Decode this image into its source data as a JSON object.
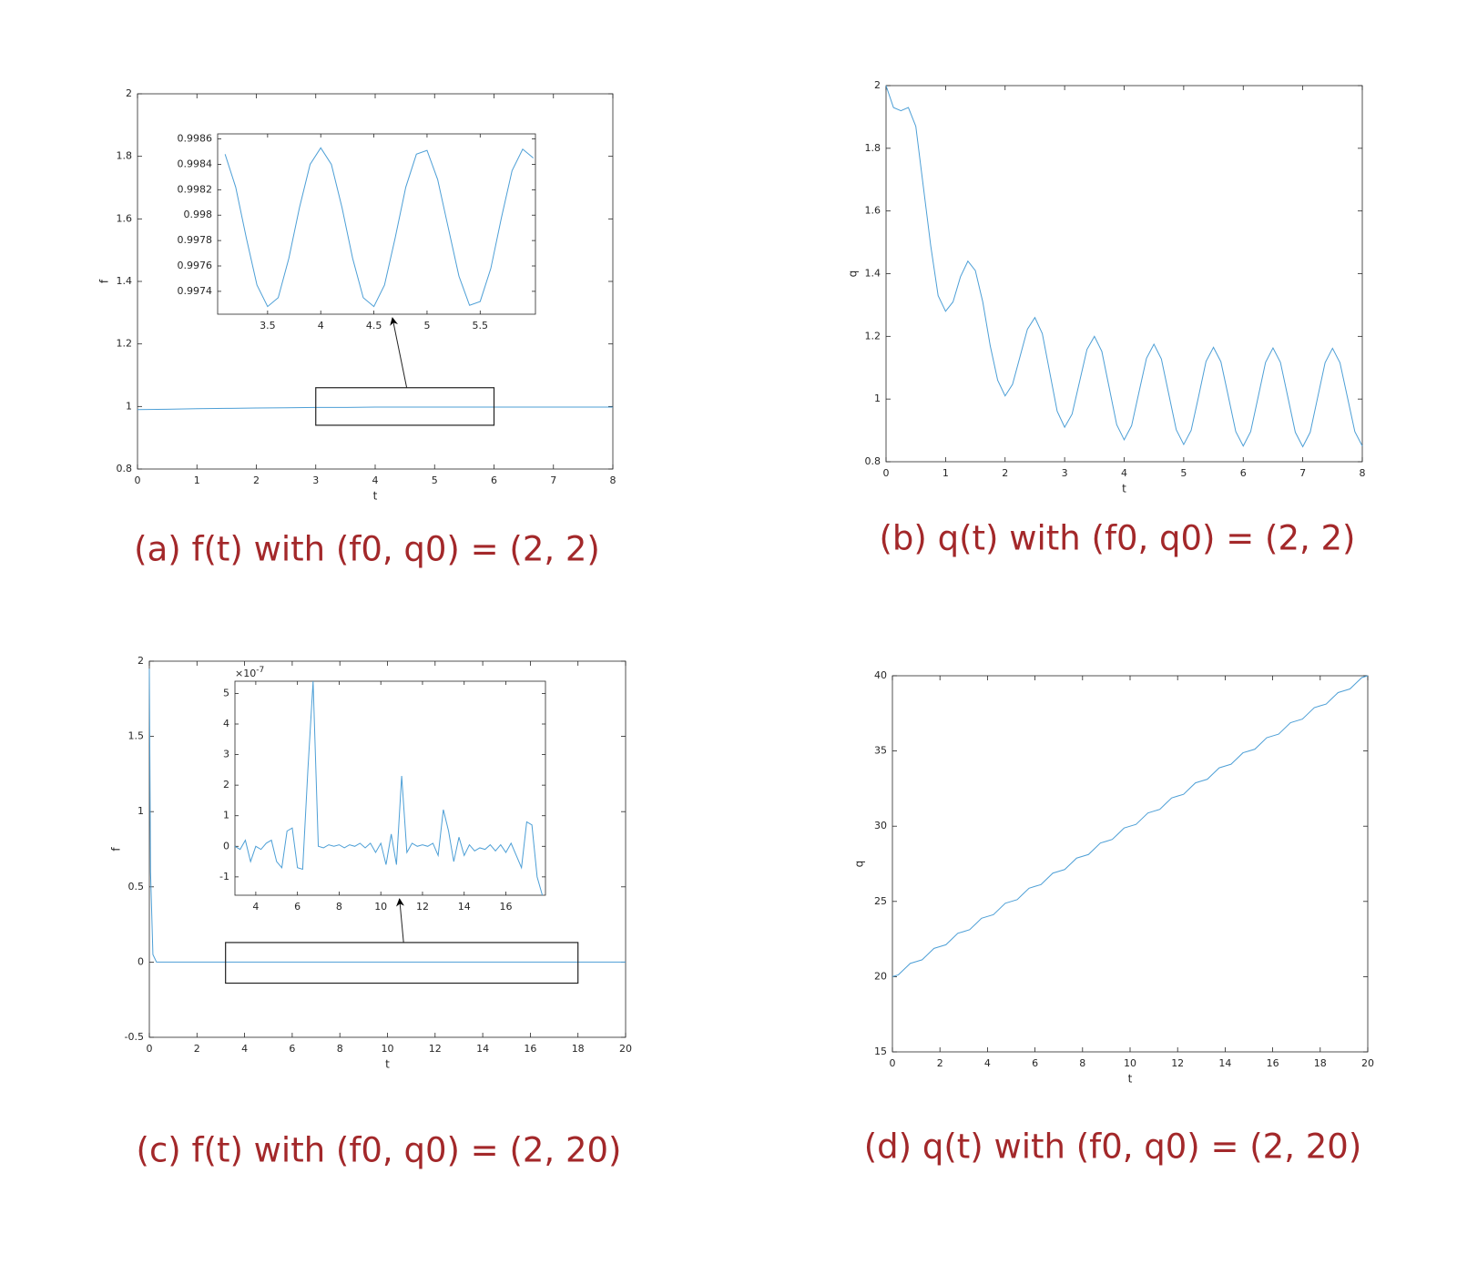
{
  "chart_data": [
    {
      "type": "line",
      "caption": "(a) f(t) with (f0, q0) = (2, 2)",
      "xlabel": "t",
      "ylabel": "f",
      "color": "#4d9fd6",
      "xlim": [
        0,
        8
      ],
      "ylim": [
        0.8,
        2
      ],
      "xticks": [
        0,
        1,
        2,
        3,
        4,
        5,
        6,
        7,
        8
      ],
      "yticks": [
        0.8,
        1,
        1.2,
        1.4,
        1.6,
        1.8,
        2
      ],
      "x": [
        0,
        0.5,
        1,
        1.5,
        2,
        2.5,
        3,
        3.5,
        4,
        4.5,
        5,
        5.5,
        6,
        6.5,
        7,
        7.5,
        8
      ],
      "values": [
        0.99,
        0.991,
        0.993,
        0.994,
        0.995,
        0.996,
        0.997,
        0.997,
        0.998,
        0.998,
        0.998,
        0.998,
        0.998,
        0.998,
        0.998,
        0.998,
        0.998
      ],
      "zoom_box": {
        "x": [
          3,
          6
        ],
        "y": [
          0.94,
          1.06
        ]
      },
      "inset": {
        "xlim": [
          3.03,
          6.02
        ],
        "ylim": [
          0.99722,
          0.99864
        ],
        "xticks": [
          3.5,
          4,
          4.5,
          5,
          5.5
        ],
        "yticks": [
          0.9974,
          0.9976,
          0.9978,
          0.998,
          0.9982,
          0.9984,
          0.9986
        ],
        "x": [
          3.1,
          3.2,
          3.3,
          3.4,
          3.5,
          3.6,
          3.7,
          3.8,
          3.9,
          4.0,
          4.1,
          4.2,
          4.3,
          4.4,
          4.5,
          4.6,
          4.7,
          4.8,
          4.9,
          5.0,
          5.1,
          5.2,
          5.3,
          5.4,
          5.5,
          5.6,
          5.7,
          5.8,
          5.9,
          6.0
        ],
        "values": [
          0.99848,
          0.99822,
          0.99782,
          0.99745,
          0.99728,
          0.99735,
          0.99766,
          0.99806,
          0.9984,
          0.99853,
          0.9984,
          0.99806,
          0.99766,
          0.99735,
          0.99728,
          0.99745,
          0.99782,
          0.99822,
          0.99848,
          0.99851,
          0.99828,
          0.9979,
          0.99752,
          0.99729,
          0.99732,
          0.99758,
          0.99798,
          0.99835,
          0.99852,
          0.99845
        ]
      }
    },
    {
      "type": "line",
      "caption": "(b) q(t) with (f0, q0) = (2, 2)",
      "xlabel": "t",
      "ylabel": "q",
      "color": "#4d9fd6",
      "xlim": [
        0,
        8
      ],
      "ylim": [
        0.8,
        2
      ],
      "xticks": [
        0,
        1,
        2,
        3,
        4,
        5,
        6,
        7,
        8
      ],
      "yticks": [
        0.8,
        1,
        1.2,
        1.4,
        1.6,
        1.8,
        2
      ],
      "x": [
        0,
        0.125,
        0.25,
        0.375,
        0.5,
        0.625,
        0.75,
        0.875,
        1,
        1.125,
        1.25,
        1.375,
        1.5,
        1.625,
        1.75,
        1.875,
        2,
        2.125,
        2.25,
        2.375,
        2.5,
        2.625,
        2.75,
        2.875,
        3,
        3.125,
        3.25,
        3.375,
        3.5,
        3.625,
        3.75,
        3.875,
        4,
        4.125,
        4.25,
        4.375,
        4.5,
        4.625,
        4.75,
        4.875,
        5,
        5.125,
        5.25,
        5.375,
        5.5,
        5.625,
        5.75,
        5.875,
        6,
        6.125,
        6.25,
        6.375,
        6.5,
        6.625,
        6.75,
        6.875,
        7,
        7.125,
        7.25,
        7.375,
        7.5,
        7.625,
        7.75,
        7.875,
        8
      ],
      "values": [
        2.0,
        1.93,
        1.92,
        1.93,
        1.87,
        1.68,
        1.49,
        1.33,
        1.28,
        1.31,
        1.39,
        1.44,
        1.41,
        1.31,
        1.17,
        1.06,
        1.01,
        1.047,
        1.135,
        1.223,
        1.26,
        1.209,
        1.085,
        0.961,
        0.91,
        0.952,
        1.055,
        1.158,
        1.2,
        1.152,
        1.035,
        0.918,
        0.87,
        0.915,
        1.023,
        1.13,
        1.175,
        1.128,
        1.015,
        0.902,
        0.855,
        0.9,
        1.008,
        1.12,
        1.165,
        1.119,
        1.008,
        0.896,
        0.85,
        0.896,
        1.006,
        1.117,
        1.163,
        1.117,
        1.006,
        0.894,
        0.848,
        0.894,
        1.005,
        1.116,
        1.162,
        1.116,
        1.006,
        0.896,
        0.85
      ]
    },
    {
      "type": "line",
      "caption": "(c) f(t) with (f0, q0) = (2, 20)",
      "xlabel": "t",
      "ylabel": "f",
      "color": "#4d9fd6",
      "xlim": [
        0,
        20
      ],
      "ylim": [
        -0.5,
        2
      ],
      "xticks": [
        0,
        2,
        4,
        6,
        8,
        10,
        12,
        14,
        16,
        18,
        20
      ],
      "yticks": [
        -0.5,
        0,
        0.5,
        1,
        1.5,
        2
      ],
      "x": [
        0,
        0.05,
        0.15,
        0.3,
        1,
        2,
        3,
        4,
        5,
        6,
        7,
        8,
        9,
        10,
        11,
        12,
        13,
        14,
        15,
        16,
        17,
        18,
        19,
        20
      ],
      "values": [
        1.95,
        0.6,
        0.05,
        0,
        0,
        0,
        0,
        0,
        0,
        0,
        0,
        0,
        0,
        0,
        0,
        0,
        0,
        0,
        0,
        0,
        0,
        0,
        0,
        0
      ],
      "zoom_box": {
        "x": [
          3.2,
          18
        ],
        "y": [
          -0.14,
          0.13
        ]
      },
      "inset": {
        "xlim": [
          3,
          17.9
        ],
        "ylim": [
          -1.6,
          5.4
        ],
        "xticks": [
          4,
          6,
          8,
          10,
          12,
          14,
          16
        ],
        "yticks": [
          -1,
          0,
          1,
          2,
          3,
          4,
          5
        ],
        "y_multiplier": {
          "base": "×10",
          "exponent": "-7"
        },
        "x": [
          3,
          3.25,
          3.5,
          3.75,
          4,
          4.25,
          4.5,
          4.75,
          5,
          5.25,
          5.5,
          5.75,
          6,
          6.25,
          6.5,
          6.75,
          7,
          7.25,
          7.5,
          7.75,
          8,
          8.25,
          8.5,
          8.75,
          9,
          9.25,
          9.5,
          9.75,
          10,
          10.25,
          10.5,
          10.75,
          11,
          11.25,
          11.5,
          11.75,
          12,
          12.25,
          12.5,
          12.75,
          13,
          13.25,
          13.5,
          13.75,
          14,
          14.25,
          14.5,
          14.75,
          15,
          15.25,
          15.5,
          15.75,
          16,
          16.25,
          16.5,
          16.75,
          17,
          17.25,
          17.5,
          17.75
        ],
        "values": [
          0,
          -0.1,
          0.2,
          -0.5,
          0,
          -0.1,
          0.1,
          0.2,
          -0.5,
          -0.7,
          0.5,
          0.6,
          -0.7,
          -0.75,
          2.5,
          5.4,
          0,
          -0.05,
          0.05,
          0,
          0.05,
          -0.05,
          0.05,
          0,
          0.1,
          -0.05,
          0.1,
          -0.2,
          0.1,
          -0.6,
          0.4,
          -0.6,
          2.3,
          -0.2,
          0.1,
          0,
          0.05,
          0,
          0.1,
          -0.3,
          1.2,
          0.5,
          -0.5,
          0.3,
          -0.3,
          0.05,
          -0.15,
          -0.05,
          -0.1,
          0.05,
          -0.15,
          0.05,
          -0.2,
          0.1,
          -0.3,
          -0.7,
          0.8,
          0.7,
          -1.0,
          -1.6
        ]
      }
    },
    {
      "type": "line",
      "caption": "(d) q(t) with (f0, q0) = (2, 20)",
      "xlabel": "t",
      "ylabel": "q",
      "color": "#4d9fd6",
      "xlim": [
        0,
        20
      ],
      "ylim": [
        15,
        40
      ],
      "xticks": [
        0,
        2,
        4,
        6,
        8,
        10,
        12,
        14,
        16,
        18,
        20
      ],
      "yticks": [
        15,
        20,
        25,
        30,
        35,
        40
      ],
      "x": [
        0,
        0.25,
        0.5,
        0.75,
        1,
        1.25,
        1.5,
        1.75,
        2,
        2.25,
        2.5,
        2.75,
        3,
        3.25,
        3.5,
        3.75,
        4,
        4.25,
        4.5,
        4.75,
        5,
        5.25,
        5.5,
        5.75,
        6,
        6.25,
        6.5,
        6.75,
        7,
        7.25,
        7.5,
        7.75,
        8,
        8.25,
        8.5,
        8.75,
        9,
        9.25,
        9.5,
        9.75,
        10,
        10.25,
        10.5,
        10.75,
        11,
        11.25,
        11.5,
        11.75,
        12,
        12.25,
        12.5,
        12.75,
        13,
        13.25,
        13.5,
        13.75,
        14,
        14.25,
        14.5,
        14.75,
        15,
        15.25,
        15.5,
        15.75,
        16,
        16.25,
        16.5,
        16.75,
        17,
        17.25,
        17.5,
        17.75,
        18,
        18.25,
        18.5,
        18.75,
        19,
        19.25,
        19.5,
        19.75,
        20
      ],
      "values": [
        20,
        20.12,
        20.5,
        20.88,
        21,
        21.12,
        21.5,
        21.88,
        22,
        22.12,
        22.5,
        22.88,
        23,
        23.12,
        23.5,
        23.88,
        24,
        24.12,
        24.5,
        24.88,
        25,
        25.12,
        25.5,
        25.88,
        26,
        26.12,
        26.5,
        26.88,
        27,
        27.12,
        27.5,
        27.88,
        28,
        28.12,
        28.5,
        28.88,
        29,
        29.12,
        29.5,
        29.88,
        30,
        30.12,
        30.5,
        30.88,
        31,
        31.12,
        31.5,
        31.88,
        32,
        32.12,
        32.5,
        32.88,
        33,
        33.12,
        33.5,
        33.88,
        34,
        34.12,
        34.5,
        34.88,
        35,
        35.12,
        35.5,
        35.88,
        36,
        36.12,
        36.5,
        36.88,
        37,
        37.12,
        37.5,
        37.88,
        38,
        38.12,
        38.5,
        38.88,
        39,
        39.12,
        39.5,
        39.88,
        40
      ]
    }
  ]
}
